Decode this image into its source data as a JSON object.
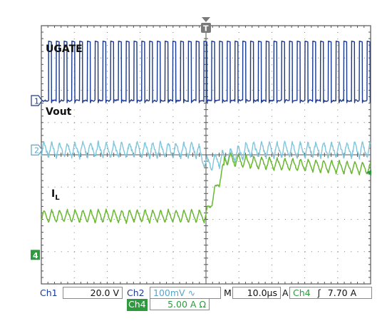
{
  "chart_data": {
    "type": "line",
    "title": "",
    "grid": true,
    "trigger_marker": "T",
    "x_divisions": 10,
    "y_divisions": 8,
    "traces": [
      {
        "name": "UGATE",
        "channel_marker": "1",
        "color": "#1a3a8f",
        "waveform": "pulse train",
        "low_level_div": -0.3,
        "high_level_div": 1.55,
        "pulse_period_div": 0.236,
        "pulse_width_div": 0.085
      },
      {
        "name": "Vout",
        "channel_marker": "2",
        "color": "#7fc6dd",
        "waveform": "sawtooth ripple",
        "dc_level_div": 0.9,
        "ripple_pp_div": 0.75,
        "transient_at_div": 5.0,
        "transient_dip_div": 0.7
      },
      {
        "name": "IL",
        "label_main": "I",
        "label_sub": "L",
        "channel_marker": "4",
        "color": "#6ab832",
        "waveform": "triangle ripple",
        "before_step_center_div": -0.8,
        "after_step_center_div": 0.9,
        "ripple_pp_div": 0.55,
        "step_at_div": 5.0
      }
    ],
    "right_marker_color": "#2e9a3e"
  },
  "status_bar": {
    "ch1_label": "Ch1",
    "ch1_value": "20.0 V",
    "ch2_label": "Ch2",
    "ch2_value": "100mV",
    "ch2_coupling": "∿",
    "timebase_label": "M",
    "timebase_value": "10.0µs",
    "acq_label": "A",
    "trigger_source": "Ch4",
    "trigger_slope": "ʃ",
    "trigger_level": "7.70 A",
    "ch4_label": "Ch4",
    "ch4_value": "5.00 A Ω"
  }
}
